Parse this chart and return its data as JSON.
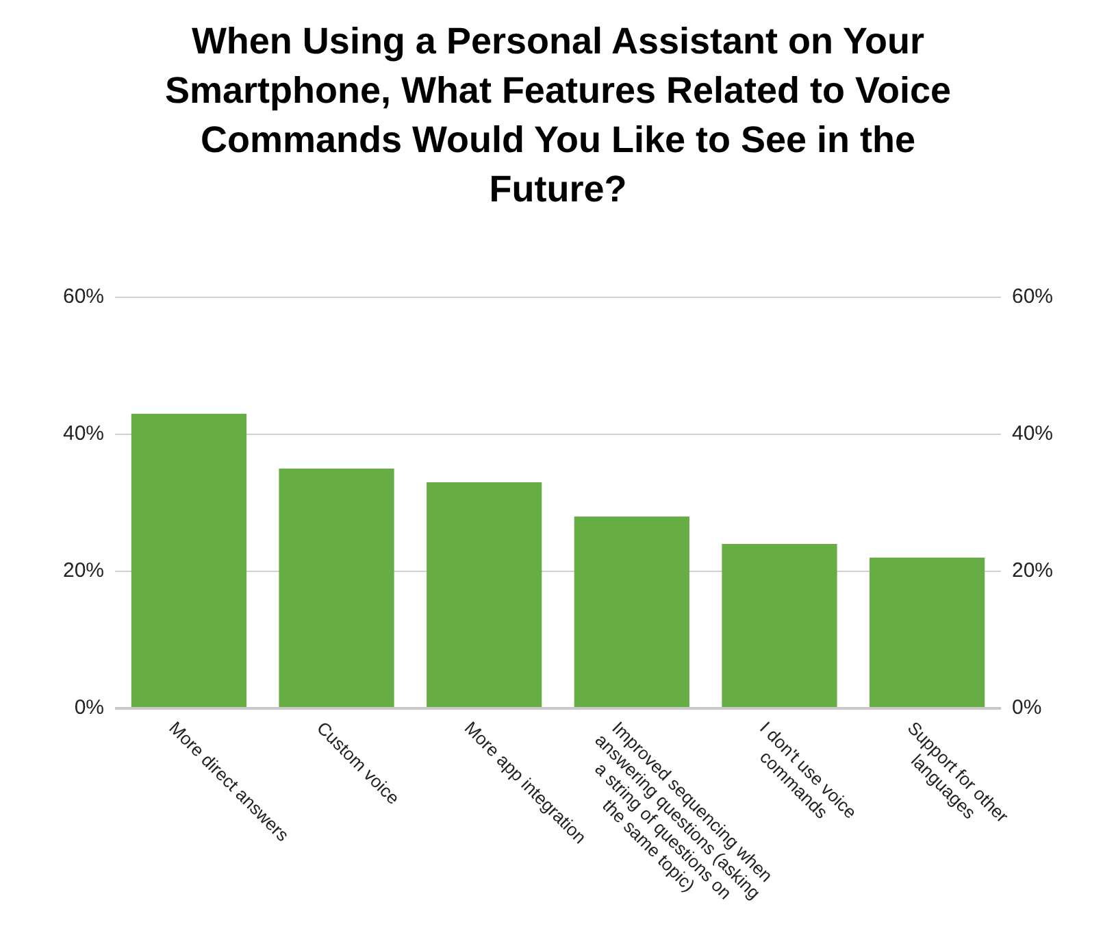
{
  "chart_data": {
    "type": "bar",
    "title": "When Using a Personal Assistant on Your Smartphone, What Features Related to Voice Commands Would You Like to See in the Future?",
    "categories": [
      "More direct answers",
      "Custom voice",
      "More app integration",
      "Improved sequencing when\nanswering questions (asking\na string of questions on\nthe same topic)",
      "I don't use voice\ncommands",
      "Support for other\nlanguages"
    ],
    "values": [
      43,
      35,
      33,
      28,
      24,
      22
    ],
    "color": "#66ad44",
    "ylim": [
      0,
      60
    ],
    "yticks": [
      {
        "value": 0,
        "label": "0%"
      },
      {
        "value": 20,
        "label": "20%"
      },
      {
        "value": 40,
        "label": "40%"
      },
      {
        "value": 60,
        "label": "60%"
      }
    ],
    "y2lim": [
      0,
      60
    ],
    "y2ticks": [
      {
        "value": 0,
        "label": "0%"
      },
      {
        "value": 20,
        "label": "20%"
      },
      {
        "value": 40,
        "label": "40%"
      },
      {
        "value": 60,
        "label": "60%"
      }
    ],
    "grid": "y"
  }
}
